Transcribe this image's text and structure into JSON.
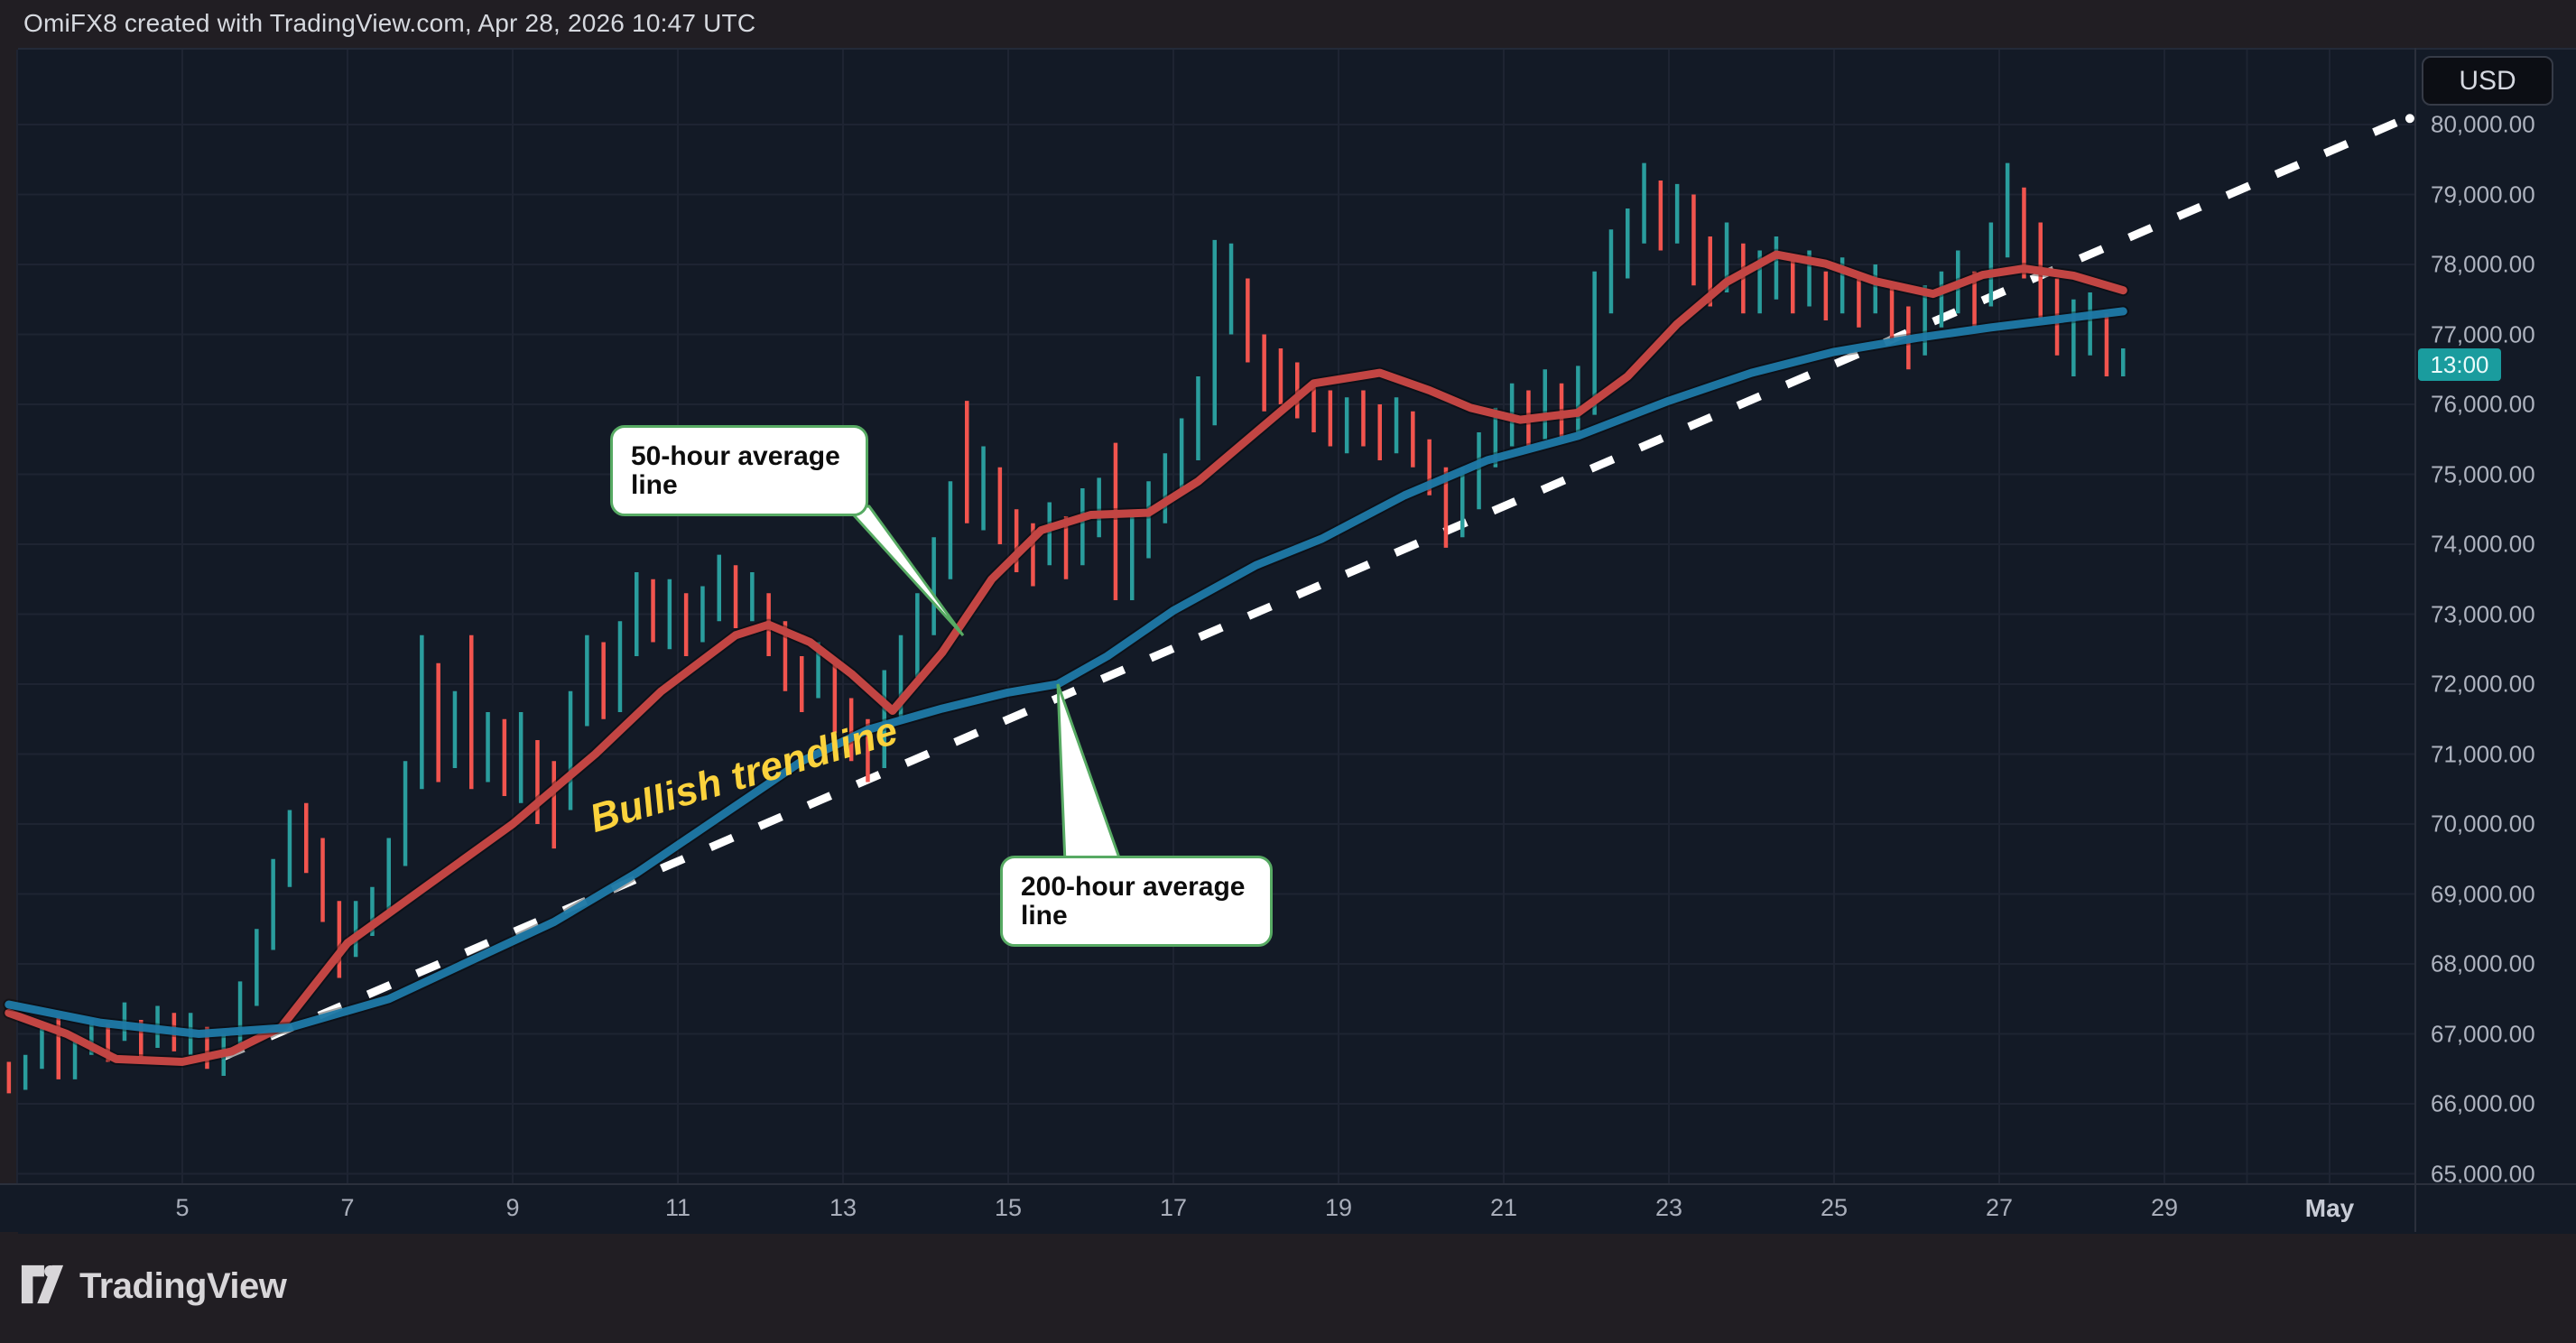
{
  "header": {
    "title": "OmiFX8 created with TradingView.com, Apr 28, 2026 10:47 UTC"
  },
  "axis": {
    "currency_label": "USD",
    "time_badge": "13:00",
    "y_ticks": [
      {
        "value": 80000,
        "label": "80,000.00"
      },
      {
        "value": 79000,
        "label": "79,000.00"
      },
      {
        "value": 78000,
        "label": "78,000.00"
      },
      {
        "value": 77000,
        "label": "77,000.00"
      },
      {
        "value": 76000,
        "label": "76,000.00"
      },
      {
        "value": 75000,
        "label": "75,000.00"
      },
      {
        "value": 74000,
        "label": "74,000.00"
      },
      {
        "value": 73000,
        "label": "73,000.00"
      },
      {
        "value": 72000,
        "label": "72,000.00"
      },
      {
        "value": 71000,
        "label": "71,000.00"
      },
      {
        "value": 70000,
        "label": "70,000.00"
      },
      {
        "value": 69000,
        "label": "69,000.00"
      },
      {
        "value": 68000,
        "label": "68,000.00"
      },
      {
        "value": 67000,
        "label": "67,000.00"
      },
      {
        "value": 66000,
        "label": "66,000.00"
      },
      {
        "value": 65000,
        "label": "65,000.00"
      }
    ],
    "x_ticks": [
      {
        "day": 5,
        "label": "5"
      },
      {
        "day": 7,
        "label": "7"
      },
      {
        "day": 9,
        "label": "9"
      },
      {
        "day": 11,
        "label": "11"
      },
      {
        "day": 13,
        "label": "13"
      },
      {
        "day": 15,
        "label": "15"
      },
      {
        "day": 17,
        "label": "17"
      },
      {
        "day": 19,
        "label": "19"
      },
      {
        "day": 21,
        "label": "21"
      },
      {
        "day": 23,
        "label": "23"
      },
      {
        "day": 25,
        "label": "25"
      },
      {
        "day": 27,
        "label": "27"
      },
      {
        "day": 29,
        "label": "29"
      },
      {
        "day": 31,
        "label": "May"
      }
    ]
  },
  "annotations": {
    "ma50_label": "50-hour average line",
    "ma200_label": "200-hour average line",
    "trendline_label": "Bullish trendline"
  },
  "footer": {
    "brand": "TradingView"
  },
  "colors": {
    "candle_up": "#2a9d9d",
    "candle_down": "#f1544e",
    "ma50": "#c24543",
    "ma200": "#1f7aa8",
    "trendline": "#ffffff",
    "annotation_green": "#57aa63",
    "trendline_label_yellow": "#fbd23c",
    "time_badge_bg": "#1a9c9e",
    "grid": "#1e2432",
    "panel_bg": "#131a26"
  },
  "chart_data": {
    "type": "candlestick",
    "symbol_currency": "USD",
    "x_axis": {
      "unit": "April 2026 date",
      "tick_days": [
        5,
        7,
        9,
        11,
        13,
        15,
        17,
        19,
        21,
        23,
        25,
        27,
        29,
        31
      ],
      "gridline_days": [
        3,
        5,
        7,
        9,
        11,
        13,
        15,
        17,
        19,
        21,
        23,
        25,
        27,
        29,
        30,
        31
      ],
      "month_label": "May"
    },
    "y_axis": {
      "min": 65000,
      "max": 80000,
      "step": 1000,
      "visible_top": 81000,
      "visible_bottom": 64900
    },
    "candles_day_start": 2.9,
    "candles_day_step": 0.2,
    "first_open": 66600,
    "candles_hlc": [
      [
        66600,
        66150,
        66350
      ],
      [
        66700,
        66200,
        66550
      ],
      [
        67100,
        66500,
        66950
      ],
      [
        67250,
        66350,
        66550
      ],
      [
        66900,
        66350,
        66750
      ],
      [
        67200,
        66700,
        67050
      ],
      [
        67150,
        66600,
        66800
      ],
      [
        67450,
        66900,
        67350
      ],
      [
        67200,
        66650,
        66850
      ],
      [
        67400,
        66800,
        67250
      ],
      [
        67300,
        66750,
        66950
      ],
      [
        67300,
        66700,
        67100
      ],
      [
        67100,
        66500,
        66700
      ],
      [
        67000,
        66400,
        66900
      ],
      [
        67750,
        66850,
        67600
      ],
      [
        68500,
        67400,
        68300
      ],
      [
        69500,
        68200,
        69300
      ],
      [
        70200,
        69100,
        69800
      ],
      [
        70300,
        69300,
        69600
      ],
      [
        69800,
        68600,
        68900
      ],
      [
        68900,
        67800,
        68100
      ],
      [
        68900,
        68100,
        68600
      ],
      [
        69100,
        68400,
        68800
      ],
      [
        69800,
        68700,
        69500
      ],
      [
        70900,
        69400,
        70600
      ],
      [
        72700,
        70500,
        72200
      ],
      [
        72300,
        70600,
        71000
      ],
      [
        71900,
        70800,
        71500
      ],
      [
        72700,
        70500,
        70800
      ],
      [
        71600,
        70600,
        71200
      ],
      [
        71500,
        70400,
        70900
      ],
      [
        71600,
        70300,
        71300
      ],
      [
        71200,
        70000,
        70500
      ],
      [
        70900,
        69650,
        70300
      ],
      [
        71900,
        70200,
        71600
      ],
      [
        72700,
        71400,
        72400
      ],
      [
        72600,
        71500,
        71800
      ],
      [
        72900,
        71600,
        72600
      ],
      [
        73600,
        72400,
        73300
      ],
      [
        73500,
        72600,
        72900
      ],
      [
        73500,
        72500,
        73200
      ],
      [
        73300,
        72400,
        72800
      ],
      [
        73400,
        72600,
        73100
      ],
      [
        73850,
        72900,
        73550
      ],
      [
        73700,
        72800,
        73200
      ],
      [
        73600,
        72900,
        73400
      ],
      [
        73300,
        72400,
        72800
      ],
      [
        72900,
        71900,
        72300
      ],
      [
        72400,
        71600,
        71900
      ],
      [
        72600,
        71800,
        72250
      ],
      [
        72300,
        71300,
        71700
      ],
      [
        71800,
        70900,
        71250
      ],
      [
        71500,
        70600,
        70950
      ],
      [
        72200,
        70800,
        71900
      ],
      [
        72700,
        71500,
        72400
      ],
      [
        73300,
        72100,
        72900
      ],
      [
        74100,
        72700,
        73800
      ],
      [
        74900,
        73500,
        74600
      ],
      [
        76050,
        74300,
        74450
      ],
      [
        75400,
        74200,
        75000
      ],
      [
        75100,
        74000,
        74300
      ],
      [
        74500,
        73600,
        74000
      ],
      [
        74300,
        73400,
        73850
      ],
      [
        74600,
        73700,
        74250
      ],
      [
        74400,
        73500,
        73950
      ],
      [
        74800,
        73700,
        74450
      ],
      [
        74950,
        74100,
        74700
      ],
      [
        75450,
        73200,
        73450
      ],
      [
        74400,
        73200,
        74050
      ],
      [
        74900,
        73800,
        74600
      ],
      [
        75300,
        74300,
        75000
      ],
      [
        75800,
        74700,
        75400
      ],
      [
        76400,
        75200,
        75950
      ],
      [
        78350,
        75700,
        77450
      ],
      [
        78300,
        77000,
        77650
      ],
      [
        77800,
        76600,
        76900
      ],
      [
        77000,
        75900,
        76350
      ],
      [
        76800,
        76000,
        76300
      ],
      [
        76600,
        75800,
        76100
      ],
      [
        76300,
        75600,
        75900
      ],
      [
        76200,
        75400,
        75700
      ],
      [
        76100,
        75300,
        75900
      ],
      [
        76200,
        75400,
        75600
      ],
      [
        76000,
        75200,
        75500
      ],
      [
        76100,
        75300,
        75900
      ],
      [
        75900,
        75100,
        75400
      ],
      [
        75500,
        74700,
        74900
      ],
      [
        75100,
        73950,
        74300
      ],
      [
        75100,
        74100,
        74900
      ],
      [
        75600,
        74500,
        75350
      ],
      [
        75950,
        75100,
        75650
      ],
      [
        76300,
        75400,
        76050
      ],
      [
        76200,
        75400,
        75800
      ],
      [
        76500,
        75500,
        76200
      ],
      [
        76300,
        75500,
        75900
      ],
      [
        76550,
        75600,
        76350
      ],
      [
        77900,
        75850,
        77600
      ],
      [
        78500,
        77300,
        78300
      ],
      [
        78800,
        77800,
        78500
      ],
      [
        79450,
        78300,
        79050
      ],
      [
        79200,
        78200,
        78600
      ],
      [
        79150,
        78300,
        78900
      ],
      [
        79000,
        77700,
        78200
      ],
      [
        78400,
        77400,
        77800
      ],
      [
        78600,
        77600,
        78300
      ],
      [
        78300,
        77300,
        77600
      ],
      [
        78200,
        77300,
        77900
      ],
      [
        78400,
        77500,
        78100
      ],
      [
        78100,
        77300,
        77700
      ],
      [
        78200,
        77400,
        77950
      ],
      [
        77900,
        77200,
        77650
      ],
      [
        78100,
        77300,
        77850
      ],
      [
        77800,
        77100,
        77550
      ],
      [
        78000,
        77300,
        77800
      ],
      [
        77700,
        76900,
        77300
      ],
      [
        77400,
        76500,
        76950
      ],
      [
        77700,
        76700,
        77400
      ],
      [
        77900,
        77100,
        77650
      ],
      [
        78200,
        77300,
        77900
      ],
      [
        77900,
        77100,
        77600
      ],
      [
        78600,
        77400,
        78200
      ],
      [
        79450,
        78100,
        78950
      ],
      [
        79100,
        77800,
        78500
      ],
      [
        78600,
        77200,
        77600
      ],
      [
        77800,
        76700,
        76900
      ],
      [
        77500,
        76400,
        77100
      ],
      [
        77600,
        76700,
        77300
      ],
      [
        77300,
        76400,
        76550
      ],
      [
        76800,
        76400,
        76600
      ]
    ],
    "series": [
      {
        "name": "50-hour average",
        "color": "#c24543",
        "points": [
          [
            2.9,
            67300
          ],
          [
            3.6,
            67000
          ],
          [
            4.2,
            66640
          ],
          [
            5.0,
            66600
          ],
          [
            5.6,
            66750
          ],
          [
            6.2,
            67100
          ],
          [
            7.0,
            68300
          ],
          [
            8.0,
            69150
          ],
          [
            9.0,
            70000
          ],
          [
            10.0,
            71000
          ],
          [
            10.8,
            71900
          ],
          [
            11.7,
            72700
          ],
          [
            12.1,
            72850
          ],
          [
            12.6,
            72600
          ],
          [
            13.1,
            72150
          ],
          [
            13.6,
            71620
          ],
          [
            14.2,
            72450
          ],
          [
            14.8,
            73500
          ],
          [
            15.4,
            74200
          ],
          [
            16.0,
            74420
          ],
          [
            16.7,
            74450
          ],
          [
            17.3,
            74900
          ],
          [
            18.0,
            75600
          ],
          [
            18.7,
            76300
          ],
          [
            19.5,
            76450
          ],
          [
            20.1,
            76200
          ],
          [
            20.6,
            75950
          ],
          [
            21.2,
            75780
          ],
          [
            21.9,
            75880
          ],
          [
            22.5,
            76400
          ],
          [
            23.1,
            77150
          ],
          [
            23.7,
            77750
          ],
          [
            24.3,
            78140
          ],
          [
            24.9,
            78010
          ],
          [
            25.5,
            77760
          ],
          [
            26.2,
            77580
          ],
          [
            26.8,
            77850
          ],
          [
            27.3,
            77940
          ],
          [
            27.9,
            77840
          ],
          [
            28.5,
            77630
          ]
        ]
      },
      {
        "name": "200-hour average",
        "color": "#1f7aa8",
        "points": [
          [
            2.9,
            67420
          ],
          [
            4.0,
            67160
          ],
          [
            5.2,
            67000
          ],
          [
            6.3,
            67090
          ],
          [
            7.5,
            67500
          ],
          [
            8.5,
            68050
          ],
          [
            9.5,
            68600
          ],
          [
            10.5,
            69300
          ],
          [
            11.5,
            70100
          ],
          [
            12.5,
            70900
          ],
          [
            13.3,
            71350
          ],
          [
            14.2,
            71650
          ],
          [
            15.0,
            71880
          ],
          [
            15.6,
            72000
          ],
          [
            16.2,
            72400
          ],
          [
            17.0,
            73050
          ],
          [
            18.0,
            73700
          ],
          [
            18.8,
            74080
          ],
          [
            19.8,
            74700
          ],
          [
            20.8,
            75200
          ],
          [
            21.9,
            75550
          ],
          [
            23.0,
            76050
          ],
          [
            24.0,
            76450
          ],
          [
            25.0,
            76750
          ],
          [
            26.0,
            76950
          ],
          [
            26.9,
            77100
          ],
          [
            27.6,
            77200
          ],
          [
            28.5,
            77330
          ]
        ]
      }
    ],
    "trendline": {
      "name": "Bullish trendline",
      "style": "dashed",
      "color": "#ffffff",
      "from_day": 5.47,
      "from_price": 66660,
      "to_day": 31.95,
      "to_price": 80100,
      "end_dot": true
    },
    "callout_targets": {
      "ma50": [
        14.45,
        72700
      ],
      "ma200": [
        15.6,
        72000
      ]
    }
  }
}
